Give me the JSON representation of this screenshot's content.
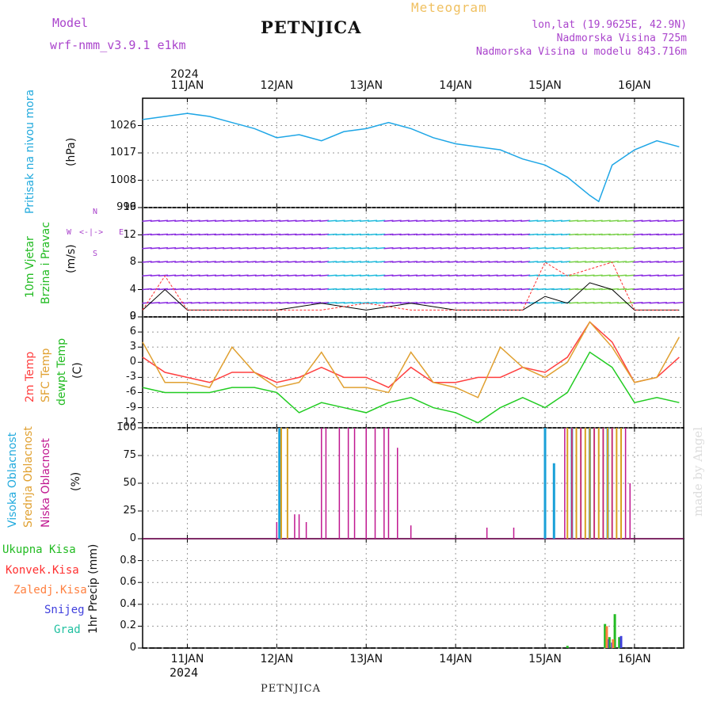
{
  "header": {
    "model_label": "Model",
    "model_name": "wrf-nmm_v3.9.1  e1km",
    "station": "PETNJICA",
    "meteogram": "Meteogram",
    "lonlat": "lon,lat (19.9625E, 42.9N)",
    "altitude": "Nadmorska Visina 725m",
    "model_altitude": "Nadmorska Visina u modelu 843.716m",
    "credit": "made by Angel",
    "footer_station": "PETNJICA"
  },
  "colors": {
    "pressure": "#1ea6e6",
    "wind_speed": "#000000",
    "gust": "#ff3030",
    "t2m": "#ff4040",
    "tsfc": "#e0a030",
    "dewpt": "#22cc22",
    "high_cloud": "#1aa0d8",
    "mid_cloud": "#d8a020",
    "low_cloud": "#c01890",
    "total_precip": "#22bb22",
    "conv_precip": "#ff3030",
    "frz_precip": "#ff8040",
    "snow": "#4040dd",
    "graupel": "#20c0a0",
    "label_purple": "#aa44cc",
    "label_cyan": "#22aadd"
  },
  "chart_data": [
    {
      "type": "line",
      "panel": "pressure",
      "ylabel": "Pritisak na nivou mora",
      "unit": "(hPa)",
      "ylim": [
        999,
        1035
      ],
      "yticks": [
        "1026",
        "1017",
        "1008",
        "999"
      ],
      "x_label_top_year": "2024",
      "x_top_ticks": [
        "11JAN",
        "12JAN",
        "13JAN",
        "14JAN",
        "15JAN",
        "16JAN"
      ],
      "x_days": [
        10.5,
        11,
        11.25,
        11.5,
        11.75,
        12,
        12.25,
        12.5,
        12.75,
        13,
        13.25,
        13.5,
        13.75,
        14,
        14.25,
        14.5,
        14.75,
        15,
        15.25,
        15.5,
        15.6,
        15.75,
        16,
        16.25,
        16.5
      ],
      "values": [
        1028,
        1030,
        1029,
        1027,
        1025,
        1022,
        1023,
        1021,
        1024,
        1025,
        1027,
        1025,
        1022,
        1020,
        1019,
        1018,
        1015,
        1013,
        1009,
        1003,
        1001,
        1013,
        1018,
        1021,
        1019
      ],
      "grid": true
    },
    {
      "type": "line",
      "panel": "wind",
      "ylabel": "10m Vjetar Brzina i Pravac",
      "unit": "(m/s)",
      "ylim": [
        0,
        16
      ],
      "yticks": [
        "0",
        "4",
        "8",
        "12",
        "16"
      ],
      "compass": {
        "n": "N",
        "e": "E",
        "s": "S",
        "w": "W",
        "arrow_v": "<-|->",
        "arrow_h": "α<-|->"
      },
      "series": [
        {
          "x_days": [
            10.5,
            10.75,
            11,
            11.5,
            12,
            12.5,
            13,
            13.5,
            14,
            14.5,
            14.75,
            15,
            15.25,
            15.5,
            15.75,
            16,
            16.5
          ],
          "values": [
            1,
            4,
            1,
            1,
            1,
            2,
            1,
            2,
            1,
            1,
            1,
            3,
            2,
            5,
            4,
            1,
            1
          ]
        },
        {
          "x_days": [
            10.5,
            10.75,
            11,
            11.5,
            12,
            12.5,
            13,
            13.5,
            14,
            14.5,
            14.75,
            15,
            15.25,
            15.5,
            15.75,
            16,
            16.5
          ],
          "values": [
            1,
            6,
            1,
            1,
            1,
            1,
            2,
            1,
            1,
            1,
            1,
            8,
            6,
            7,
            8,
            1,
            1
          ]
        }
      ],
      "grid": true
    },
    {
      "type": "line",
      "panel": "temperature",
      "ylabel_lines": [
        "2m Temp",
        "SFC Temp",
        "dewpt Temp"
      ],
      "unit": "(C)",
      "ylim": [
        -13,
        9
      ],
      "yticks": [
        "9",
        "6",
        "3",
        "0",
        "-3",
        "-6",
        "-9",
        "-12"
      ],
      "x_days": [
        10.5,
        10.75,
        11,
        11.25,
        11.5,
        11.75,
        12,
        12.25,
        12.5,
        12.75,
        13,
        13.25,
        13.5,
        13.75,
        14,
        14.25,
        14.5,
        14.75,
        15,
        15.25,
        15.5,
        15.75,
        16,
        16.25,
        16.5
      ],
      "series": [
        {
          "name": "2m Temp",
          "values": [
            1,
            -2,
            -3,
            -4,
            -2,
            -2,
            -4,
            -3,
            -1,
            -3,
            -3,
            -5,
            -1,
            -4,
            -4,
            -3,
            -3,
            -1,
            -2,
            1,
            8,
            4,
            -4,
            -3,
            1
          ]
        },
        {
          "name": "SFC Temp",
          "values": [
            4,
            -4,
            -4,
            -5,
            3,
            -2,
            -5,
            -4,
            2,
            -5,
            -5,
            -6,
            2,
            -4,
            -5,
            -7,
            3,
            -1,
            -3,
            0,
            8,
            3,
            -4,
            -3,
            5
          ]
        },
        {
          "name": "dewpt Temp",
          "values": [
            -5,
            -6,
            -6,
            -6,
            -5,
            -5,
            -6,
            -10,
            -8,
            -9,
            -10,
            -8,
            -7,
            -9,
            -10,
            -12,
            -9,
            -7,
            -9,
            -6,
            2,
            -1,
            -8,
            -7,
            -8
          ]
        }
      ],
      "grid": true
    },
    {
      "type": "bar",
      "panel": "cloud",
      "ylabel_lines": [
        "Visoka Oblacnost",
        "Srednja Oblacnost",
        "Niska Oblacnost"
      ],
      "unit": "(%)",
      "ylim": [
        0,
        100
      ],
      "yticks": [
        "100",
        "75",
        "50",
        "25",
        "0"
      ],
      "series": [
        {
          "name": "Visoka Oblacnost",
          "x_days": [
            12.03,
            15.0,
            15.1,
            15.3,
            15.5,
            15.7
          ],
          "values": [
            100,
            100,
            68,
            100,
            100,
            100
          ]
        },
        {
          "name": "Srednja Oblacnost",
          "x_days": [
            12.05,
            12.12,
            15.25,
            15.3,
            15.35,
            15.4,
            15.45,
            15.5,
            15.55,
            15.6,
            15.65,
            15.7,
            15.75,
            15.8,
            15.85
          ],
          "values": [
            100,
            100,
            100,
            100,
            100,
            100,
            100,
            100,
            100,
            100,
            100,
            100,
            100,
            100,
            100
          ]
        },
        {
          "name": "Niska Oblacnost",
          "x_days": [
            12.0,
            12.2,
            12.25,
            12.33,
            12.5,
            12.55,
            12.7,
            12.8,
            12.87,
            13.0,
            13.1,
            13.2,
            13.25,
            13.35,
            13.5,
            14.35,
            14.65,
            15.22,
            15.3,
            15.4,
            15.55,
            15.65,
            15.75,
            15.9,
            15.95
          ],
          "values": [
            15,
            22,
            22,
            15,
            100,
            100,
            100,
            100,
            100,
            100,
            100,
            100,
            100,
            82,
            12,
            10,
            10,
            100,
            100,
            100,
            100,
            100,
            100,
            100,
            50
          ]
        }
      ],
      "grid": true
    },
    {
      "type": "bar",
      "panel": "precip",
      "legend": [
        "Ukupna  Kisa",
        "Konvek.Kisa",
        "Zaledj.Kisa",
        "Snijeg",
        "Grad"
      ],
      "ylabel": "1hr Precip (mm)",
      "ylim": [
        0,
        1.0
      ],
      "yticks": [
        "0.8",
        "0.6",
        "0.4",
        "0.2",
        "0"
      ],
      "x_bottom_ticks": [
        "11JAN",
        "12JAN",
        "13JAN",
        "14JAN",
        "15JAN",
        "16JAN"
      ],
      "x_label_bottom_year": "2024",
      "series": [
        {
          "name": "Ukupna  Kisa",
          "x_days": [
            15.25,
            15.67,
            15.72,
            15.78,
            15.83
          ],
          "values": [
            0.02,
            0.22,
            0.1,
            0.31,
            0.1
          ]
        },
        {
          "name": "Snijeg",
          "x_days": [
            15.7,
            15.75,
            15.85
          ],
          "values": [
            0.08,
            0.05,
            0.11
          ]
        },
        {
          "name": "Zaledj.Kisa",
          "x_days": [
            15.69,
            15.76
          ],
          "values": [
            0.2,
            0.08
          ]
        }
      ],
      "grid": true
    }
  ]
}
